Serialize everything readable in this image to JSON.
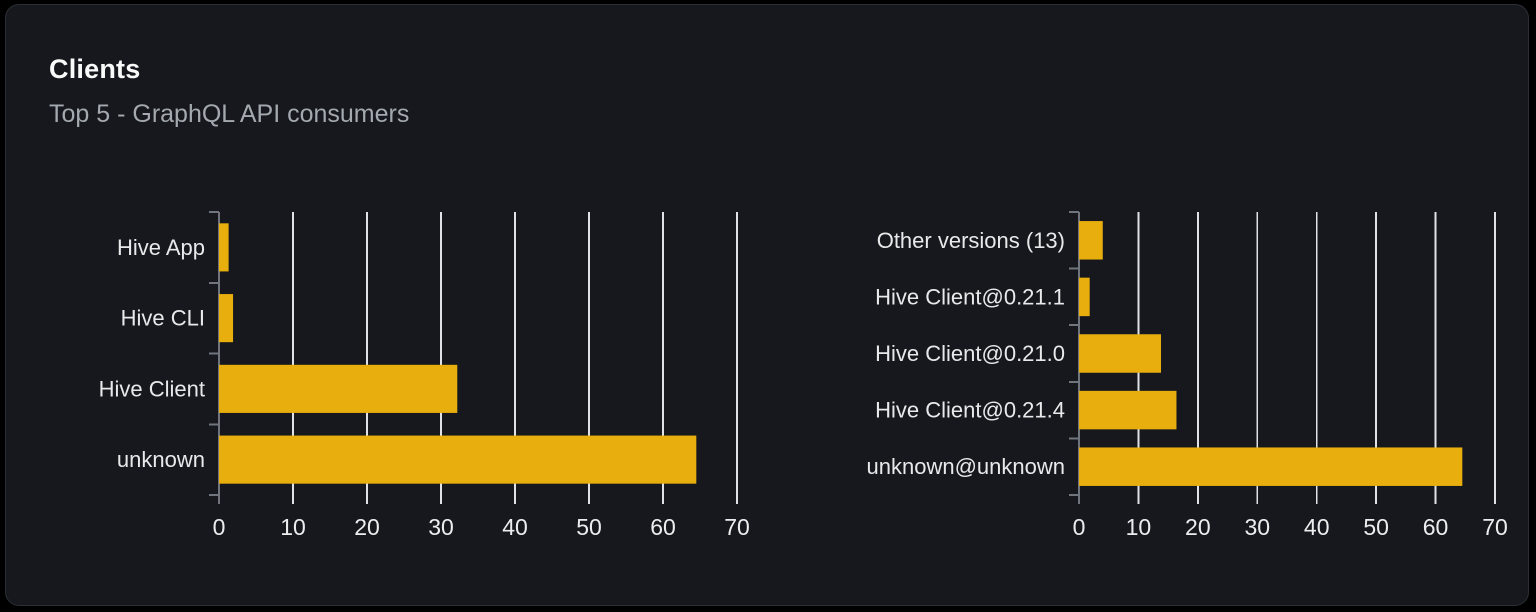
{
  "card": {
    "title": "Clients",
    "subtitle": "Top 5 - GraphQL API consumers"
  },
  "colors": {
    "page_background": "#000000",
    "card_background": "#16181d",
    "card_border": "#2b2e34",
    "title_text": "#fafafa",
    "subtitle_text": "#a4a9b0",
    "bar_fill": "#e8ae0e",
    "gridline": "#dfe2e6",
    "axis_line": "#6f747d",
    "category_label": "#e8e9eb",
    "tick_label": "#ecedee"
  },
  "chart_data": [
    {
      "type": "bar",
      "orientation": "horizontal",
      "name": "clients-by-name",
      "categories": [
        "Hive App",
        "Hive CLI",
        "Hive Client",
        "unknown"
      ],
      "values": [
        1.3,
        1.9,
        32.2,
        64.5
      ],
      "xlabel": "",
      "ylabel": "",
      "xlim": [
        0,
        70
      ],
      "xticks": [
        0,
        10,
        20,
        30,
        40,
        50,
        60,
        70
      ],
      "grid": true,
      "legend_position": "none"
    },
    {
      "type": "bar",
      "orientation": "horizontal",
      "name": "clients-by-version",
      "categories": [
        "Other versions (13)",
        "Hive Client@0.21.1",
        "Hive Client@0.21.0",
        "Hive Client@0.21.4",
        "unknown@unknown"
      ],
      "values": [
        4.0,
        1.8,
        13.8,
        16.4,
        64.5
      ],
      "xlabel": "",
      "ylabel": "",
      "xlim": [
        0,
        70
      ],
      "xticks": [
        0,
        10,
        20,
        30,
        40,
        50,
        60,
        70
      ],
      "grid": true,
      "legend_position": "none"
    }
  ]
}
